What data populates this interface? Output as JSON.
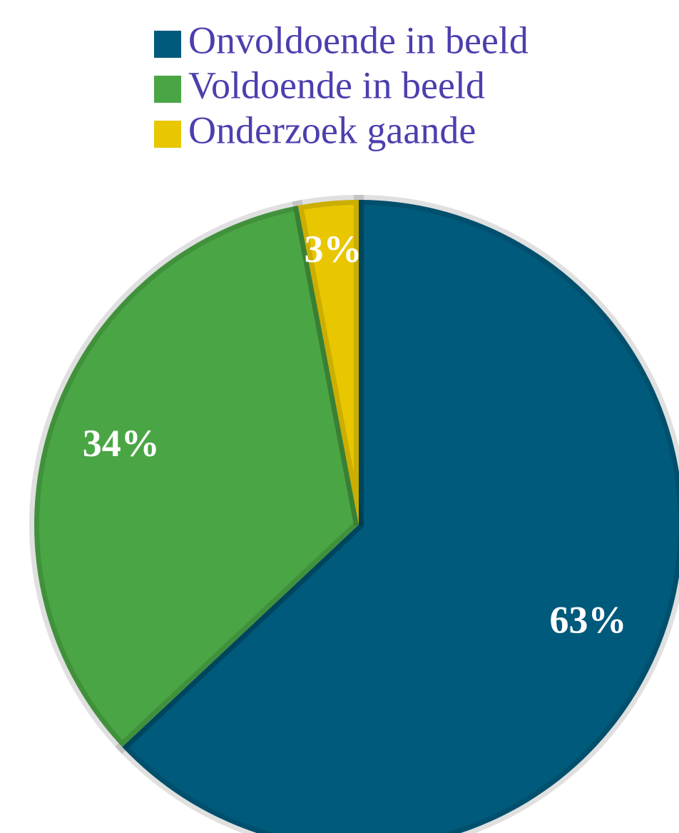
{
  "chart_data": {
    "type": "pie",
    "categories": [
      "Onvoldoende in beeld",
      "Voldoende in beeld",
      "Onderzoek gaande"
    ],
    "values": [
      63,
      34,
      3
    ],
    "value_labels": [
      "63%",
      "34%",
      "3%"
    ],
    "colors": [
      "#005a7c",
      "#4aa645",
      "#e8c600"
    ],
    "legend": "top"
  }
}
